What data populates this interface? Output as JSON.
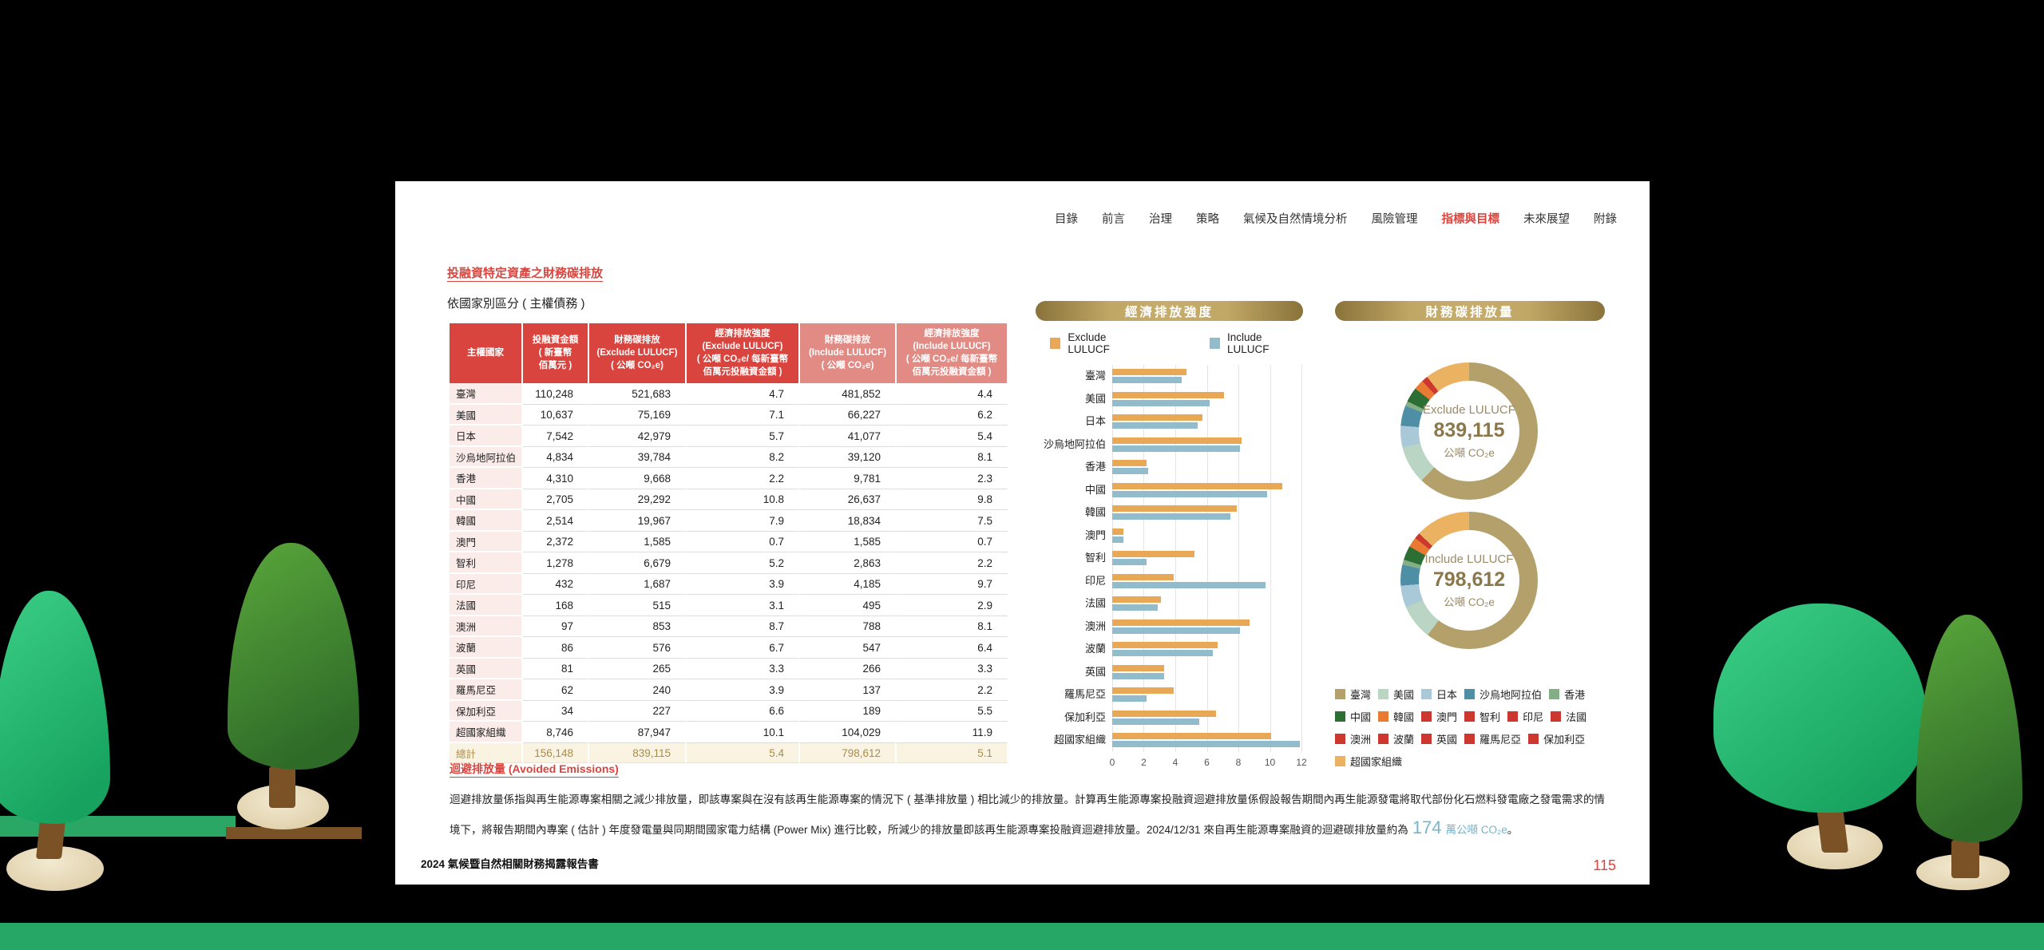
{
  "nav": {
    "items": [
      {
        "label": "目錄",
        "active": false
      },
      {
        "label": "前言",
        "active": false
      },
      {
        "label": "治理",
        "active": false
      },
      {
        "label": "策略",
        "active": false
      },
      {
        "label": "氣候及自然情境分析",
        "active": false
      },
      {
        "label": "風險管理",
        "active": false
      },
      {
        "label": "指標與目標",
        "active": true
      },
      {
        "label": "未來展望",
        "active": false
      },
      {
        "label": "附錄",
        "active": false
      }
    ]
  },
  "section": {
    "title": "投融資特定資產之財務碳排放",
    "subtitle": "依國家別區分 ( 主權債務 )"
  },
  "table": {
    "headers": [
      "主權國家",
      "投融資金額\n( 新臺幣\n佰萬元 )",
      "財務碳排放\n(Exclude LULUCF)\n( 公噸 CO₂e)",
      "經濟排放強度\n(Exclude LULUCF)\n( 公噸 CO₂e/ 每新臺幣\n佰萬元投融資金額 )",
      "財務碳排放\n(Include LULUCF)\n( 公噸 CO₂e)",
      "經濟排放強度\n(Include LULUCF)\n( 公噸 CO₂e/ 每新臺幣\n佰萬元投融資金額 )"
    ],
    "rows": [
      {
        "country": "臺灣",
        "amount": "110,248",
        "excl": "521,683",
        "excl_int": "4.7",
        "incl": "481,852",
        "incl_int": "4.4"
      },
      {
        "country": "美國",
        "amount": "10,637",
        "excl": "75,169",
        "excl_int": "7.1",
        "incl": "66,227",
        "incl_int": "6.2"
      },
      {
        "country": "日本",
        "amount": "7,542",
        "excl": "42,979",
        "excl_int": "5.7",
        "incl": "41,077",
        "incl_int": "5.4"
      },
      {
        "country": "沙烏地阿拉伯",
        "amount": "4,834",
        "excl": "39,784",
        "excl_int": "8.2",
        "incl": "39,120",
        "incl_int": "8.1"
      },
      {
        "country": "香港",
        "amount": "4,310",
        "excl": "9,668",
        "excl_int": "2.2",
        "incl": "9,781",
        "incl_int": "2.3"
      },
      {
        "country": "中國",
        "amount": "2,705",
        "excl": "29,292",
        "excl_int": "10.8",
        "incl": "26,637",
        "incl_int": "9.8"
      },
      {
        "country": "韓國",
        "amount": "2,514",
        "excl": "19,967",
        "excl_int": "7.9",
        "incl": "18,834",
        "incl_int": "7.5"
      },
      {
        "country": "澳門",
        "amount": "2,372",
        "excl": "1,585",
        "excl_int": "0.7",
        "incl": "1,585",
        "incl_int": "0.7"
      },
      {
        "country": "智利",
        "amount": "1,278",
        "excl": "6,679",
        "excl_int": "5.2",
        "incl": "2,863",
        "incl_int": "2.2"
      },
      {
        "country": "印尼",
        "amount": "432",
        "excl": "1,687",
        "excl_int": "3.9",
        "incl": "4,185",
        "incl_int": "9.7"
      },
      {
        "country": "法國",
        "amount": "168",
        "excl": "515",
        "excl_int": "3.1",
        "incl": "495",
        "incl_int": "2.9"
      },
      {
        "country": "澳洲",
        "amount": "97",
        "excl": "853",
        "excl_int": "8.7",
        "incl": "788",
        "incl_int": "8.1"
      },
      {
        "country": "波蘭",
        "amount": "86",
        "excl": "576",
        "excl_int": "6.7",
        "incl": "547",
        "incl_int": "6.4"
      },
      {
        "country": "英國",
        "amount": "81",
        "excl": "265",
        "excl_int": "3.3",
        "incl": "266",
        "incl_int": "3.3"
      },
      {
        "country": "羅馬尼亞",
        "amount": "62",
        "excl": "240",
        "excl_int": "3.9",
        "incl": "137",
        "incl_int": "2.2"
      },
      {
        "country": "保加利亞",
        "amount": "34",
        "excl": "227",
        "excl_int": "6.6",
        "incl": "189",
        "incl_int": "5.5"
      },
      {
        "country": "超國家組織",
        "amount": "8,746",
        "excl": "87,947",
        "excl_int": "10.1",
        "incl": "104,029",
        "incl_int": "11.9"
      }
    ],
    "total": {
      "country": "總計",
      "amount": "156,148",
      "excl": "839,115",
      "excl_int": "5.4",
      "incl": "798,612",
      "incl_int": "5.1"
    }
  },
  "chart_data": [
    {
      "type": "bar",
      "title": "經濟排放強度",
      "orientation": "horizontal",
      "categories": [
        "臺灣",
        "美國",
        "日本",
        "沙烏地阿拉伯",
        "香港",
        "中國",
        "韓國",
        "澳門",
        "智利",
        "印尼",
        "法國",
        "澳洲",
        "波蘭",
        "英國",
        "羅馬尼亞",
        "保加利亞",
        "超國家組織"
      ],
      "series": [
        {
          "name": "Exclude LULUCF",
          "color": "#E9A855",
          "values": [
            4.7,
            7.1,
            5.7,
            8.2,
            2.2,
            10.8,
            7.9,
            0.7,
            5.2,
            3.9,
            3.1,
            8.7,
            6.7,
            3.3,
            3.9,
            6.6,
            10.1
          ]
        },
        {
          "name": "Include LULUCF",
          "color": "#92BCCB",
          "values": [
            4.4,
            6.2,
            5.4,
            8.1,
            2.3,
            9.8,
            7.5,
            0.7,
            2.2,
            9.7,
            2.9,
            8.1,
            6.4,
            3.3,
            2.2,
            5.5,
            11.9
          ]
        }
      ],
      "xlabel": "",
      "ylabel": "",
      "xlim": [
        0,
        12
      ],
      "xticks": [
        0,
        2,
        4,
        6,
        8,
        10,
        12
      ],
      "grid": true,
      "legend_position": "top"
    },
    {
      "type": "pie",
      "title": "財務碳排放量",
      "labels": [
        "臺灣",
        "美國",
        "日本",
        "沙烏地阿拉伯",
        "香港",
        "中國",
        "韓國",
        "澳門",
        "智利",
        "印尼",
        "法國",
        "澳洲",
        "波蘭",
        "英國",
        "羅馬尼亞",
        "保加利亞",
        "超國家組織"
      ],
      "colors": [
        "#B3A06B",
        "#BAD5C3",
        "#A9C8D8",
        "#4E8FA6",
        "#83AE86",
        "#2C6E33",
        "#E97A31",
        "#CC3830",
        "#CC3830",
        "#CC3830",
        "#CC3830",
        "#CC3830",
        "#CC3830",
        "#CC3830",
        "#CC3830",
        "#CC3830",
        "#EBB261"
      ],
      "donuts": [
        {
          "label": "Exclude LULUCF",
          "total": "839,115",
          "unit": "公噸 CO₂e",
          "values": [
            521683,
            75169,
            42979,
            39784,
            9668,
            29292,
            19967,
            1585,
            6679,
            1687,
            515,
            853,
            576,
            265,
            240,
            227,
            87947
          ]
        },
        {
          "label": "Include LULUCF",
          "total": "798,612",
          "unit": "公噸 CO₂e",
          "values": [
            481852,
            66227,
            41077,
            39120,
            9781,
            26637,
            18834,
            1585,
            2863,
            4185,
            495,
            788,
            547,
            266,
            137,
            189,
            104029
          ]
        }
      ],
      "legend_position": "bottom"
    }
  ],
  "avoided": {
    "title": "迴避排放量 (Avoided Emissions)",
    "text_before": "迴避排放量係指與再生能源專案相關之減少排放量，即該專案與在沒有該再生能源專案的情況下 ( 基準排放量 ) 相比減少的排放量。計算再生能源專案投融資迴避排放量係假設報告期間內再生能源發電將取代部份化石燃料發電廠之發電需求的情境下，將報告期間內專案 ( 估計 ) 年度發電量與同期間國家電力結構 (Power Mix) 進行比較，所減少的排放量即該再生能源專案投融資迴避排放量。2024/12/31 來自再生能源專案融資的迴避碳排放量約為",
    "highlight_value": "174",
    "highlight_unit": "萬公噸 CO₂e",
    "text_after": "。"
  },
  "footer": {
    "report_title": "2024 氣候暨自然相關財務揭露報告書",
    "page_number": "115"
  },
  "colors": {
    "accent_red": "#D9453E",
    "header_dark": "#D9453E",
    "header_light": "#E28B85",
    "row_label_pink": "#FBECEA",
    "total_row_bg": "#FAF3E2",
    "total_row_text": "#A88D4B",
    "banner_gold": "#B2985A",
    "bar_exclude": "#E9A855",
    "bar_include": "#92BCCB",
    "highlight_teal": "#74B6CA"
  }
}
